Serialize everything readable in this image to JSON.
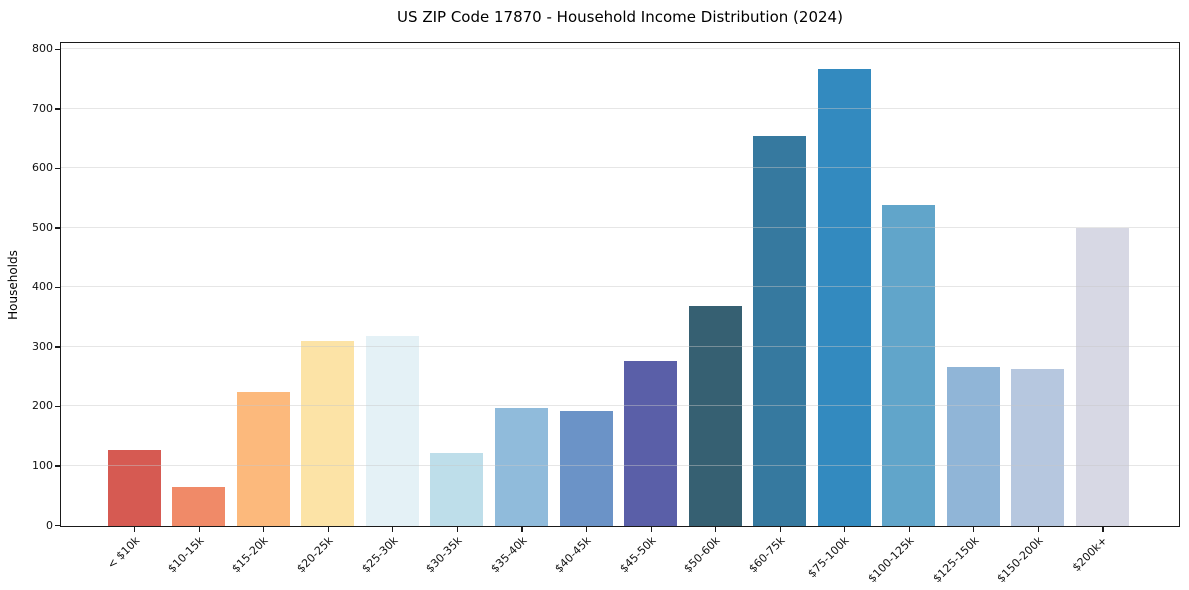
{
  "chart_data": {
    "type": "bar",
    "title": "US ZIP Code 17870 - Household Income Distribution (2024)",
    "xlabel": "",
    "ylabel": "Households",
    "ylim": [
      0,
      800
    ],
    "yticks": [
      0,
      100,
      200,
      300,
      400,
      500,
      600,
      700,
      800
    ],
    "grid": true,
    "grid_axis": "y",
    "legend": false,
    "categories": [
      "< $10k",
      "$10-15k",
      "$15-20k",
      "$20-25k",
      "$25-30k",
      "$30-35k",
      "$35-40k",
      "$40-45k",
      "$45-50k",
      "$50-60k",
      "$60-75k",
      "$75-100k",
      "$100-125k",
      "$125-150k",
      "$150-200k",
      "$200k+"
    ],
    "values": [
      128,
      65,
      225,
      311,
      319,
      123,
      198,
      193,
      278,
      370,
      655,
      768,
      540,
      267,
      264,
      500
    ],
    "bar_colors": [
      "#d65a52",
      "#f08a68",
      "#fcb97c",
      "#fce3a6",
      "#e4f1f6",
      "#bedeea",
      "#90bbdb",
      "#6b93c7",
      "#5a5fa8",
      "#366072",
      "#36799f",
      "#338abf",
      "#61a5ca",
      "#90b5d7",
      "#b6c7df",
      "#d7d8e4"
    ],
    "colors": {
      "background": "#ffffff",
      "spine": "#1a1a1a",
      "gridline": "#c7c7c7",
      "text": "#111111"
    }
  }
}
